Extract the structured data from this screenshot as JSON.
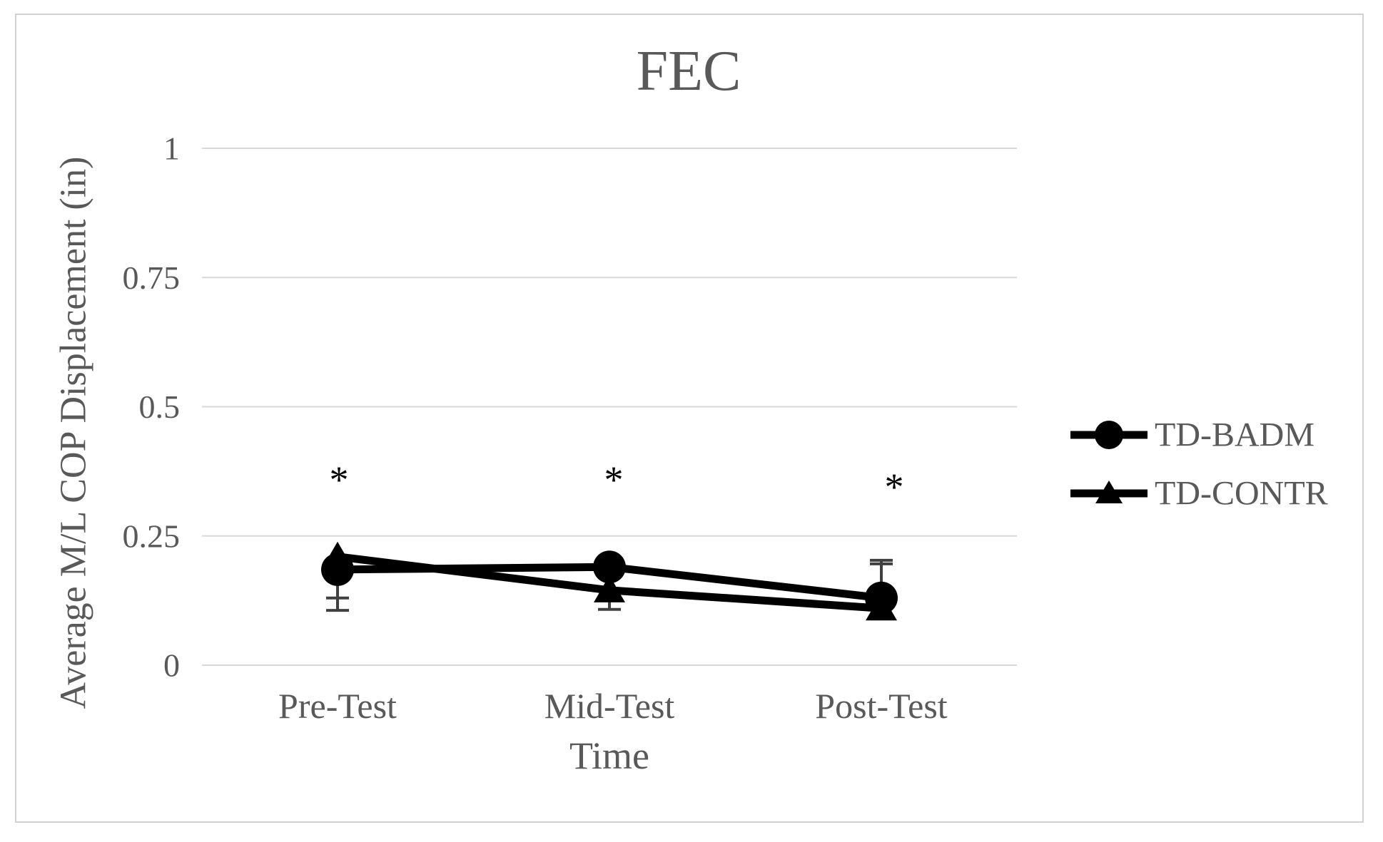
{
  "figure": {
    "title": "FEC"
  },
  "colors": {
    "background": "#ffffff",
    "border": "#d2d2d2",
    "grid": "#d9d9d9",
    "text": "#595959",
    "series": "#000000",
    "whisker": "#404040",
    "annotation": "#000000"
  },
  "chart_data": {
    "type": "line",
    "title": "FEC",
    "xlabel": "Time",
    "ylabel": "Average M/L COP Displacement (in)",
    "categories": [
      "Pre-Test",
      "Mid-Test",
      "Post-Test"
    ],
    "ylim": [
      0,
      1
    ],
    "grid": "horizontal",
    "legend_position": "right",
    "y_ticks": [
      {
        "value": 0,
        "label": "0"
      },
      {
        "value": 0.25,
        "label": "0.25"
      },
      {
        "value": 0.5,
        "label": "0.5"
      },
      {
        "value": 0.75,
        "label": "0.75"
      },
      {
        "value": 1,
        "label": "1"
      }
    ],
    "series": [
      {
        "name": "TD-BADM",
        "marker": "circle",
        "color": "#000000",
        "values": [
          0.185,
          0.19,
          0.13
        ]
      },
      {
        "name": "TD-CONTR",
        "marker": "triangle",
        "color": "#000000",
        "values": [
          0.21,
          0.145,
          0.11
        ]
      }
    ],
    "error_bars": [
      {
        "series": "TD-BADM",
        "category_index": 0,
        "from": 0.185,
        "to": 0.13
      },
      {
        "series": "TD-CONTR",
        "category_index": 0,
        "from": 0.21,
        "to": 0.106
      },
      {
        "series": "TD-CONTR",
        "category_index": 1,
        "from": 0.145,
        "to": 0.108
      },
      {
        "series": "TD-BADM",
        "category_index": 2,
        "from": 0.13,
        "to": 0.203
      },
      {
        "series": "TD-CONTR",
        "category_index": 2,
        "from": 0.11,
        "to": 0.196
      }
    ],
    "annotations": [
      {
        "text": "*",
        "category_index": 0,
        "value": 0.37,
        "dx": 2
      },
      {
        "text": "*",
        "category_index": 1,
        "value": 0.37,
        "dx": 6
      },
      {
        "text": "*",
        "category_index": 2,
        "value": 0.356,
        "dx": 18
      }
    ]
  }
}
